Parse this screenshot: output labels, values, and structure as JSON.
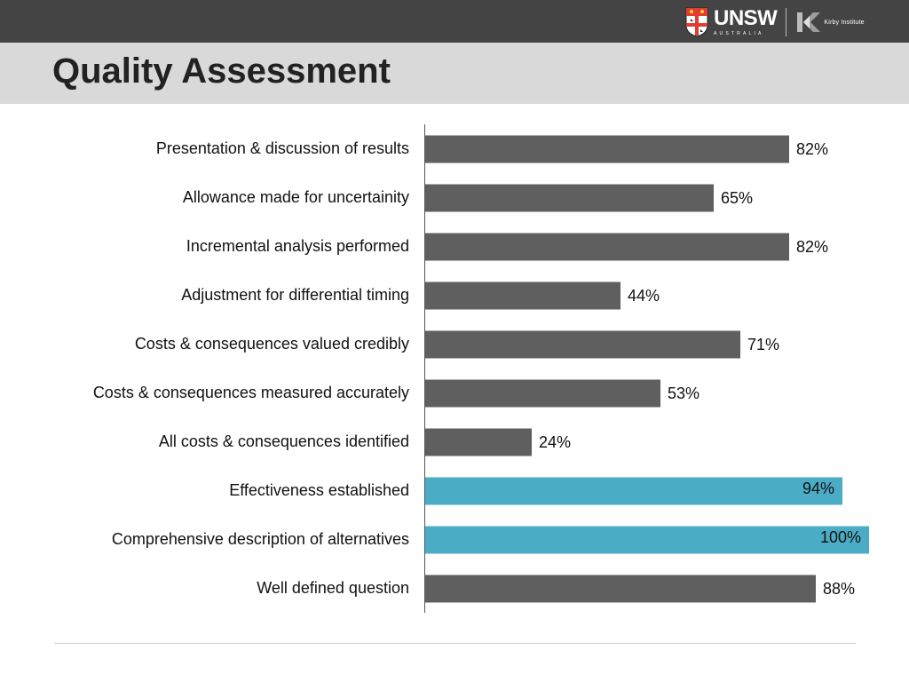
{
  "header": {
    "logo_text": "UNSW",
    "logo_subtext": "AUSTRALIA",
    "partner_logo_text": "Kirby Institute"
  },
  "title": "Quality Assessment",
  "colors": {
    "bar_default": "#5f5f5f",
    "bar_highlight": "#4bacc6",
    "topbar": "#444444",
    "titlebar": "#d9d9d9"
  },
  "chart_data": {
    "type": "bar",
    "orientation": "horizontal",
    "unit": "%",
    "xlim": [
      0,
      100
    ],
    "grid": false,
    "categories": [
      "Presentation & discussion of results",
      "Allowance made for uncertainity",
      "Incremental analysis performed",
      "Adjustment for differential timing",
      "Costs & consequences valued credibly",
      "Costs & consequences measured accurately",
      "All costs & consequences identified",
      "Effectiveness established",
      "Comprehensive description of alternatives",
      "Well defined question"
    ],
    "values": [
      82,
      65,
      82,
      44,
      71,
      53,
      24,
      94,
      100,
      88
    ],
    "value_labels": [
      "82%",
      "65%",
      "82%",
      "44%",
      "71%",
      "53%",
      "24%",
      "94%",
      "100%",
      "88%"
    ],
    "highlighted": [
      false,
      false,
      false,
      false,
      false,
      false,
      false,
      true,
      true,
      false
    ]
  }
}
